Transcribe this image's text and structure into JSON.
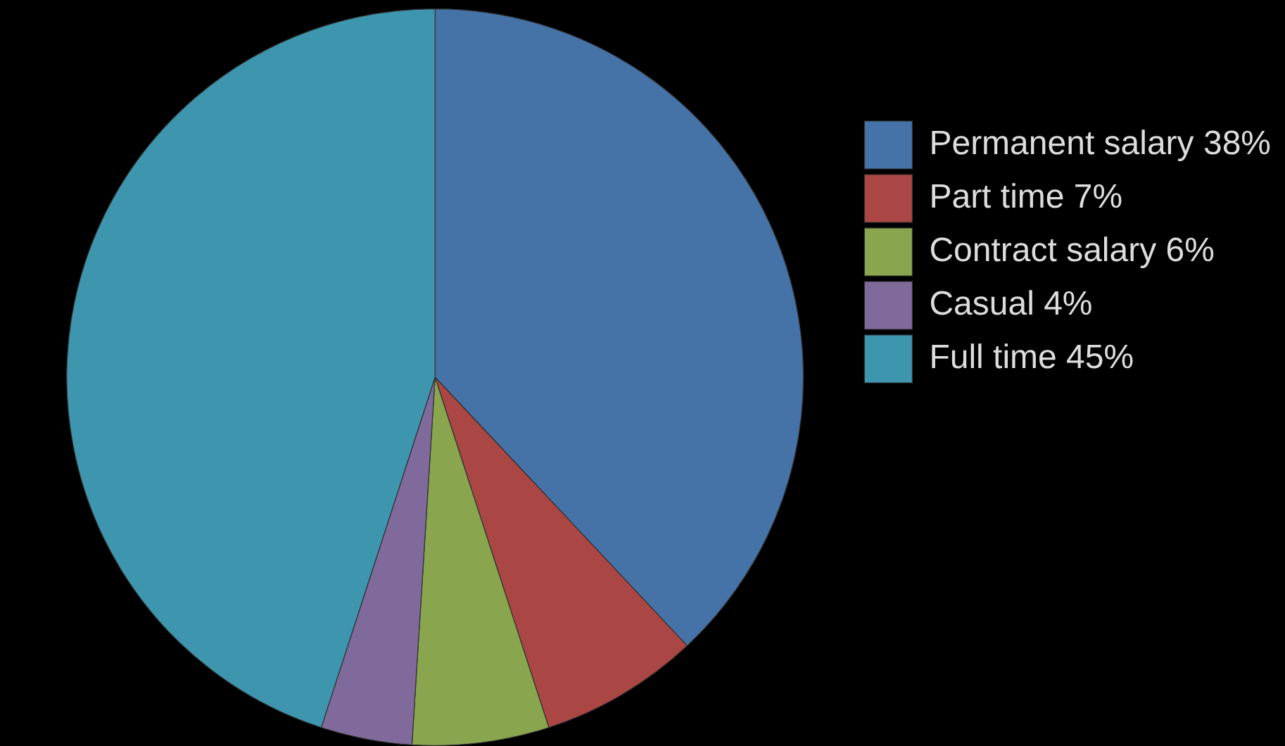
{
  "chart_data": {
    "type": "pie",
    "categories": [
      "Permanent salary 38%",
      "Part time 7%",
      "Contract salary 6%",
      "Casual 4%",
      "Full time 45%"
    ],
    "values": [
      38,
      7,
      6,
      4,
      45
    ],
    "colors": [
      "#4572a7",
      "#aa4643",
      "#89a54e",
      "#80699b",
      "#3d96ae"
    ],
    "legend": "right"
  }
}
